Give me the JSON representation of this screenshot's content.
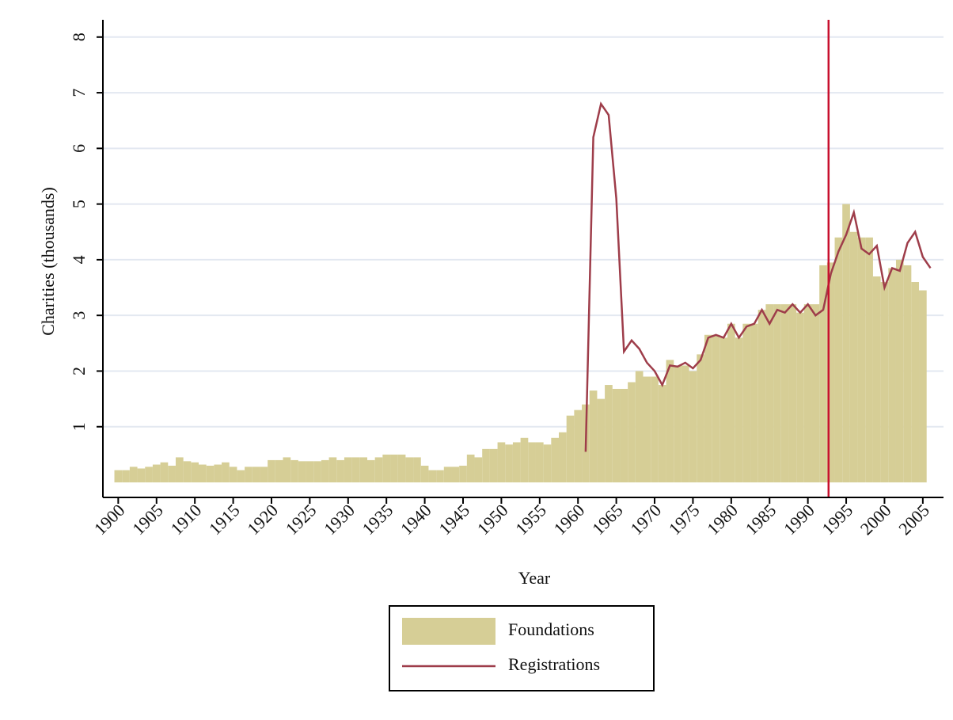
{
  "chart_data": {
    "type": "bar-line",
    "x_label": "Year",
    "y_label": "Charities (thousands)",
    "x": [
      1900,
      1901,
      1902,
      1903,
      1904,
      1905,
      1906,
      1907,
      1908,
      1909,
      1910,
      1911,
      1912,
      1913,
      1914,
      1915,
      1916,
      1917,
      1918,
      1919,
      1920,
      1921,
      1922,
      1923,
      1924,
      1925,
      1926,
      1927,
      1928,
      1929,
      1930,
      1931,
      1932,
      1933,
      1934,
      1935,
      1936,
      1937,
      1938,
      1939,
      1940,
      1941,
      1942,
      1943,
      1944,
      1945,
      1946,
      1947,
      1948,
      1949,
      1950,
      1951,
      1952,
      1953,
      1954,
      1955,
      1956,
      1957,
      1958,
      1959,
      1960,
      1961,
      1962,
      1963,
      1964,
      1965,
      1966,
      1967,
      1968,
      1969,
      1970,
      1971,
      1972,
      1973,
      1974,
      1975,
      1976,
      1977,
      1978,
      1979,
      1980,
      1981,
      1982,
      1983,
      1984,
      1985,
      1986,
      1987,
      1988,
      1989,
      1990,
      1991,
      1992,
      1993,
      1994,
      1995,
      1996,
      1997,
      1998,
      1999,
      2000,
      2001,
      2002,
      2003,
      2004,
      2005,
      2006
    ],
    "series": [
      {
        "name": "Foundations",
        "kind": "bar",
        "color": "#d6ce96",
        "values": [
          0.22,
          0.22,
          0.28,
          0.25,
          0.28,
          0.32,
          0.36,
          0.3,
          0.45,
          0.38,
          0.36,
          0.32,
          0.3,
          0.32,
          0.36,
          0.28,
          0.22,
          0.28,
          0.28,
          0.28,
          0.4,
          0.4,
          0.45,
          0.4,
          0.38,
          0.38,
          0.38,
          0.4,
          0.45,
          0.4,
          0.45,
          0.45,
          0.45,
          0.4,
          0.45,
          0.5,
          0.5,
          0.5,
          0.45,
          0.45,
          0.3,
          0.22,
          0.22,
          0.28,
          0.28,
          0.3,
          0.5,
          0.45,
          0.6,
          0.6,
          0.72,
          0.68,
          0.72,
          0.8,
          0.72,
          0.72,
          0.68,
          0.8,
          0.9,
          1.2,
          1.3,
          1.4,
          1.65,
          1.5,
          1.75,
          1.68,
          1.68,
          1.8,
          2.0,
          1.9,
          1.9,
          1.75,
          2.2,
          2.1,
          2.1,
          2.0,
          2.3,
          2.65,
          2.65,
          2.6,
          2.85,
          2.6,
          2.85,
          2.85,
          3.1,
          3.2,
          3.2,
          3.2,
          3.2,
          3.05,
          3.2,
          3.2,
          3.9,
          3.95,
          4.4,
          5.0,
          4.5,
          4.4,
          4.4,
          3.7,
          3.6,
          3.85,
          4.0,
          3.9,
          3.6,
          3.45,
          null
        ]
      },
      {
        "name": "Registrations",
        "kind": "line",
        "color": "#9e3d4a",
        "values": [
          null,
          null,
          null,
          null,
          null,
          null,
          null,
          null,
          null,
          null,
          null,
          null,
          null,
          null,
          null,
          null,
          null,
          null,
          null,
          null,
          null,
          null,
          null,
          null,
          null,
          null,
          null,
          null,
          null,
          null,
          null,
          null,
          null,
          null,
          null,
          null,
          null,
          null,
          null,
          null,
          null,
          null,
          null,
          null,
          null,
          null,
          null,
          null,
          null,
          null,
          null,
          null,
          null,
          null,
          null,
          null,
          null,
          null,
          null,
          null,
          null,
          0.55,
          6.2,
          6.8,
          6.6,
          5.1,
          2.35,
          2.55,
          2.4,
          2.15,
          2.0,
          1.75,
          2.1,
          2.08,
          2.15,
          2.05,
          2.2,
          2.6,
          2.65,
          2.6,
          2.85,
          2.6,
          2.8,
          2.85,
          3.1,
          2.85,
          3.1,
          3.05,
          3.2,
          3.05,
          3.2,
          3.0,
          3.1,
          3.75,
          4.15,
          4.45,
          4.85,
          4.2,
          4.1,
          4.25,
          3.5,
          3.85,
          3.8,
          4.3,
          4.5,
          4.05,
          3.85
        ]
      }
    ],
    "vline": 1992.7,
    "vline_color": "#c8102e",
    "xlim": [
      1898,
      2007.7
    ],
    "ylim": [
      -0.27,
      8.31
    ],
    "xticks": [
      1900,
      1905,
      1910,
      1915,
      1920,
      1925,
      1930,
      1935,
      1940,
      1945,
      1950,
      1955,
      1960,
      1965,
      1970,
      1975,
      1980,
      1985,
      1990,
      1995,
      2000,
      2005
    ],
    "yticks": [
      1,
      2,
      3,
      4,
      5,
      6,
      7,
      8
    ],
    "grid": true
  }
}
